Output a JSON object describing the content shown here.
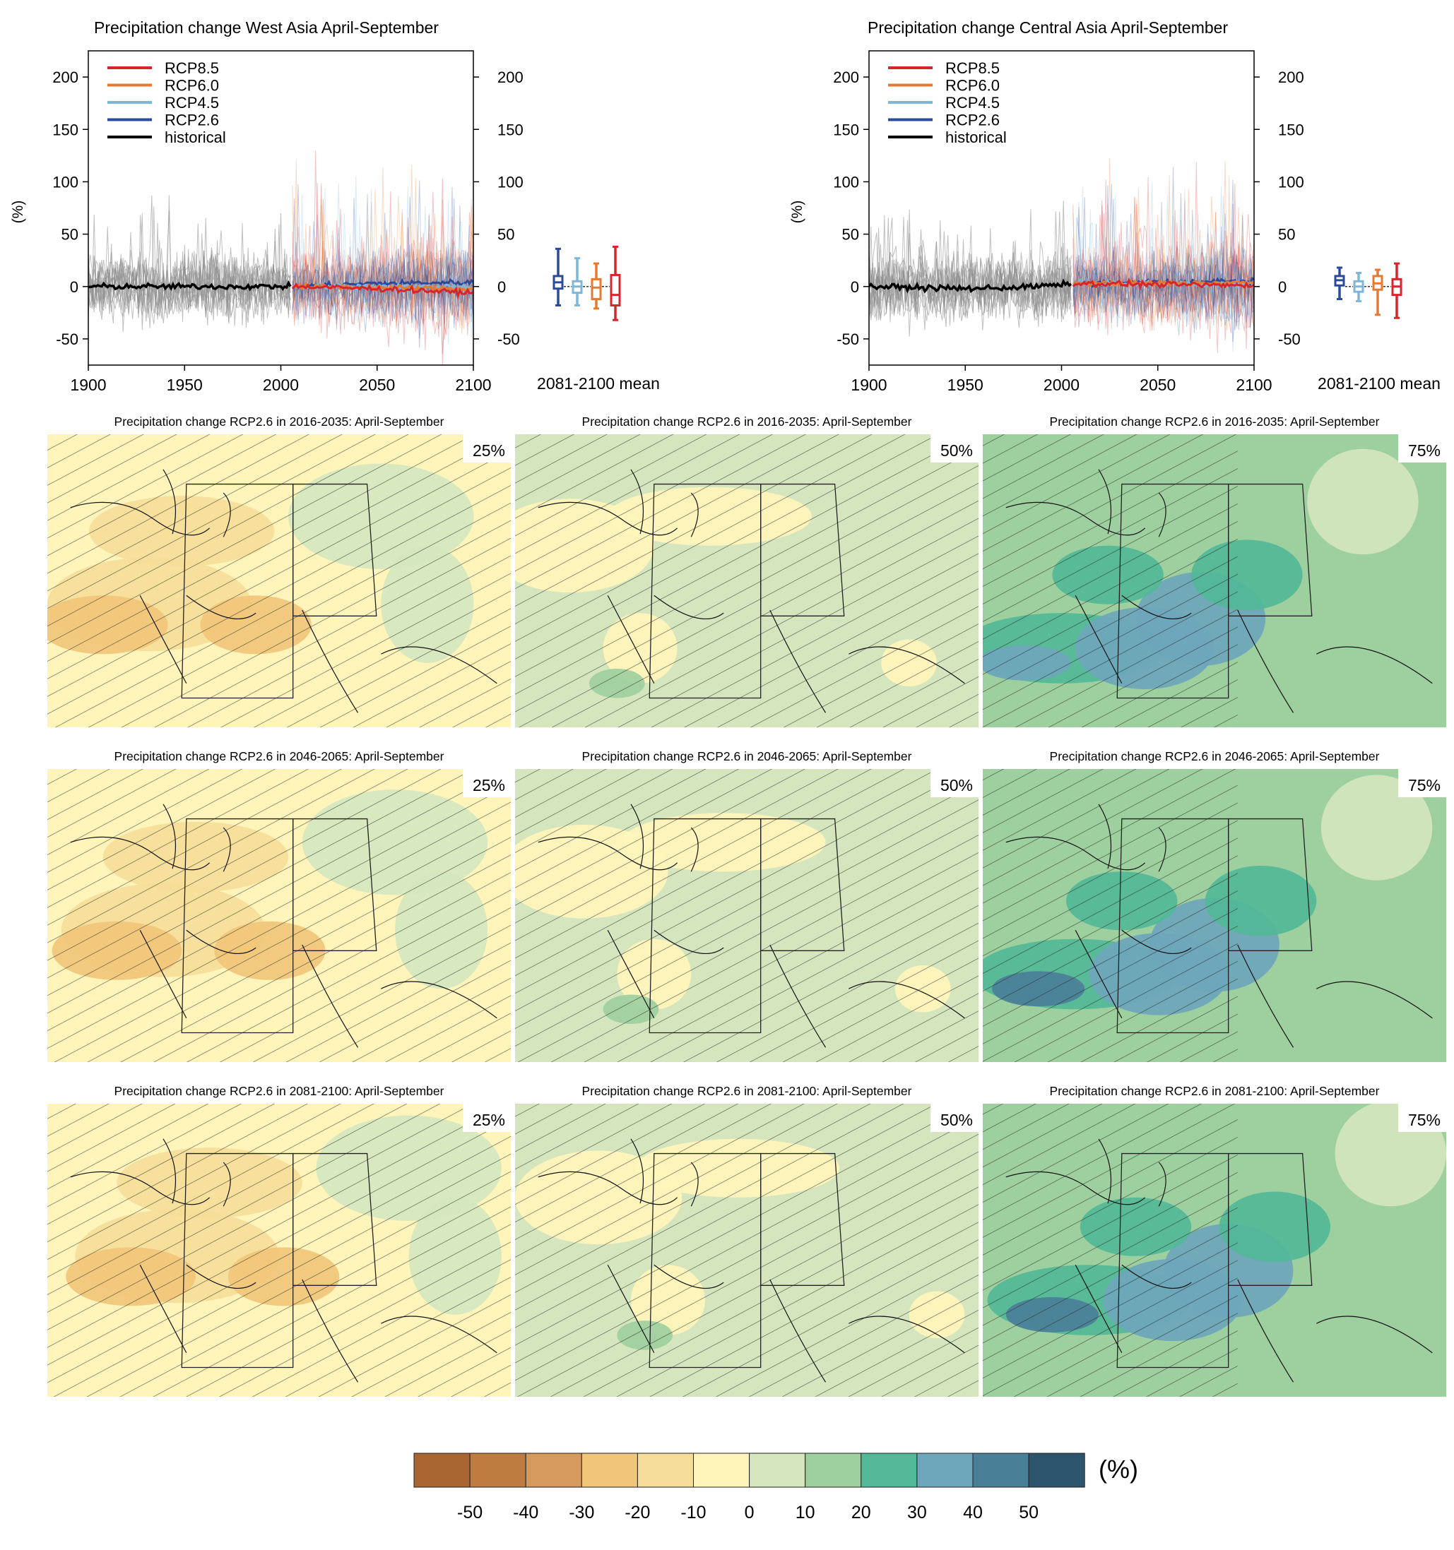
{
  "figure": {
    "timeseries": [
      {
        "title": "Precipitation change West Asia April-September",
        "ylabel": "(%)",
        "xlim": [
          1900,
          2100
        ],
        "ylim": [
          -75,
          225
        ],
        "xticks": [
          1900,
          1950,
          2000,
          2050,
          2100
        ],
        "yticks": [
          -50,
          0,
          50,
          100,
          150,
          200
        ],
        "boxlabel": "2081-2100 mean",
        "legend": [
          "RCP8.5",
          "RCP6.0",
          "RCP4.5",
          "RCP2.6",
          "historical"
        ],
        "boxes": [
          {
            "scenario": "RCP2.6",
            "min": -18,
            "q1": -2,
            "median": 4,
            "q3": 10,
            "max": 36
          },
          {
            "scenario": "RCP4.5",
            "min": -18,
            "q1": -6,
            "median": 0,
            "q3": 5,
            "max": 27
          },
          {
            "scenario": "RCP6.0",
            "min": -21,
            "q1": -12,
            "median": -1,
            "q3": 7,
            "max": 22
          },
          {
            "scenario": "RCP8.5",
            "min": -32,
            "q1": -18,
            "median": -8,
            "q3": 11,
            "max": 38
          }
        ]
      },
      {
        "title": "Precipitation change Central Asia April-September",
        "ylabel": "(%)",
        "xlim": [
          1900,
          2100
        ],
        "ylim": [
          -75,
          225
        ],
        "xticks": [
          1900,
          1950,
          2000,
          2050,
          2100
        ],
        "yticks": [
          -50,
          0,
          50,
          100,
          150,
          200
        ],
        "boxlabel": "2081-2100 mean",
        "legend": [
          "RCP8.5",
          "RCP6.0",
          "RCP4.5",
          "RCP2.6",
          "historical"
        ],
        "boxes": [
          {
            "scenario": "RCP2.6",
            "min": -12,
            "q1": 1,
            "median": 6,
            "q3": 10,
            "max": 18
          },
          {
            "scenario": "RCP4.5",
            "min": -14,
            "q1": -5,
            "median": 0,
            "q3": 5,
            "max": 13
          },
          {
            "scenario": "RCP6.0",
            "min": -27,
            "q1": -3,
            "median": 3,
            "q3": 10,
            "max": 16
          },
          {
            "scenario": "RCP8.5",
            "min": -30,
            "q1": -8,
            "median": 0,
            "q3": 7,
            "max": 22
          }
        ]
      }
    ],
    "maps": {
      "rows": [
        {
          "title": "Precipitation change RCP2.6 in 2016-2035: April-September"
        },
        {
          "title": "Precipitation change RCP2.6 in 2046-2065: April-September"
        },
        {
          "title": "Precipitation change RCP2.6 in 2081-2100: April-September"
        }
      ],
      "percentiles": [
        "25%",
        "50%",
        "75%"
      ]
    },
    "colorbar": {
      "unit": "(%)",
      "ticks": [
        "-50",
        "-40",
        "-30",
        "-20",
        "-10",
        "0",
        "10",
        "20",
        "30",
        "40",
        "50"
      ],
      "colors": [
        "#a86532",
        "#bf7c40",
        "#d6995e",
        "#f0c67a",
        "#f5dd99",
        "#fff5bb",
        "#d5e6bf",
        "#9ecf9e",
        "#52b897",
        "#6ea6bb",
        "#4a7f98",
        "#2d546d"
      ]
    }
  },
  "chart_data": [
    {
      "type": "line",
      "title": "Precipitation change West Asia April-September",
      "ylabel": "(%)",
      "xlim": [
        1900,
        2100
      ],
      "ylim": [
        -75,
        225
      ],
      "series": [
        {
          "name": "historical",
          "x": [
            1900,
            1925,
            1950,
            1975,
            2005
          ],
          "y": [
            0,
            0,
            0,
            0,
            0
          ]
        },
        {
          "name": "RCP2.6",
          "x": [
            2006,
            2050,
            2100
          ],
          "y": [
            0,
            3,
            4
          ]
        },
        {
          "name": "RCP4.5",
          "x": [
            2006,
            2050,
            2100
          ],
          "y": [
            0,
            0,
            0
          ]
        },
        {
          "name": "RCP6.0",
          "x": [
            2006,
            2050,
            2100
          ],
          "y": [
            0,
            -1,
            -2
          ]
        },
        {
          "name": "RCP8.5",
          "x": [
            2006,
            2050,
            2100
          ],
          "y": [
            0,
            -2,
            -6
          ]
        }
      ],
      "boxplot_2081_2100_mean": [
        {
          "name": "RCP2.6",
          "min": -18,
          "q1": -2,
          "median": 4,
          "q3": 10,
          "max": 36
        },
        {
          "name": "RCP4.5",
          "min": -18,
          "q1": -6,
          "median": 0,
          "q3": 5,
          "max": 27
        },
        {
          "name": "RCP6.0",
          "min": -21,
          "q1": -12,
          "median": -1,
          "q3": 7,
          "max": 22
        },
        {
          "name": "RCP8.5",
          "min": -32,
          "q1": -18,
          "median": -8,
          "q3": 11,
          "max": 38
        }
      ]
    },
    {
      "type": "line",
      "title": "Precipitation change Central Asia April-September",
      "ylabel": "(%)",
      "xlim": [
        1900,
        2100
      ],
      "ylim": [
        -75,
        225
      ],
      "series": [
        {
          "name": "historical",
          "x": [
            1900,
            1925,
            1950,
            1975,
            2005
          ],
          "y": [
            0,
            -1,
            -2,
            -1,
            2
          ]
        },
        {
          "name": "RCP2.6",
          "x": [
            2006,
            2050,
            2100
          ],
          "y": [
            3,
            4,
            5
          ]
        },
        {
          "name": "RCP4.5",
          "x": [
            2006,
            2050,
            2100
          ],
          "y": [
            3,
            3,
            2
          ]
        },
        {
          "name": "RCP6.0",
          "x": [
            2006,
            2050,
            2100
          ],
          "y": [
            3,
            3,
            4
          ]
        },
        {
          "name": "RCP8.5",
          "x": [
            2006,
            2050,
            2100
          ],
          "y": [
            3,
            2,
            1
          ]
        }
      ],
      "boxplot_2081_2100_mean": [
        {
          "name": "RCP2.6",
          "min": -12,
          "q1": 1,
          "median": 6,
          "q3": 10,
          "max": 18
        },
        {
          "name": "RCP4.5",
          "min": -14,
          "q1": -5,
          "median": 0,
          "q3": 5,
          "max": 13
        },
        {
          "name": "RCP6.0",
          "min": -27,
          "q1": -3,
          "median": 3,
          "q3": 10,
          "max": 16
        },
        {
          "name": "RCP8.5",
          "min": -30,
          "q1": -8,
          "median": 0,
          "q3": 7,
          "max": 22
        }
      ]
    },
    {
      "type": "heatmap",
      "title": "Precipitation change RCP2.6 maps (25%, 50%, 75% percentiles) for 2016-2035, 2046-2065, 2081-2100",
      "unit": "(%)",
      "levels": [
        -50,
        -40,
        -30,
        -20,
        -10,
        0,
        10,
        20,
        30,
        40,
        50
      ]
    }
  ]
}
